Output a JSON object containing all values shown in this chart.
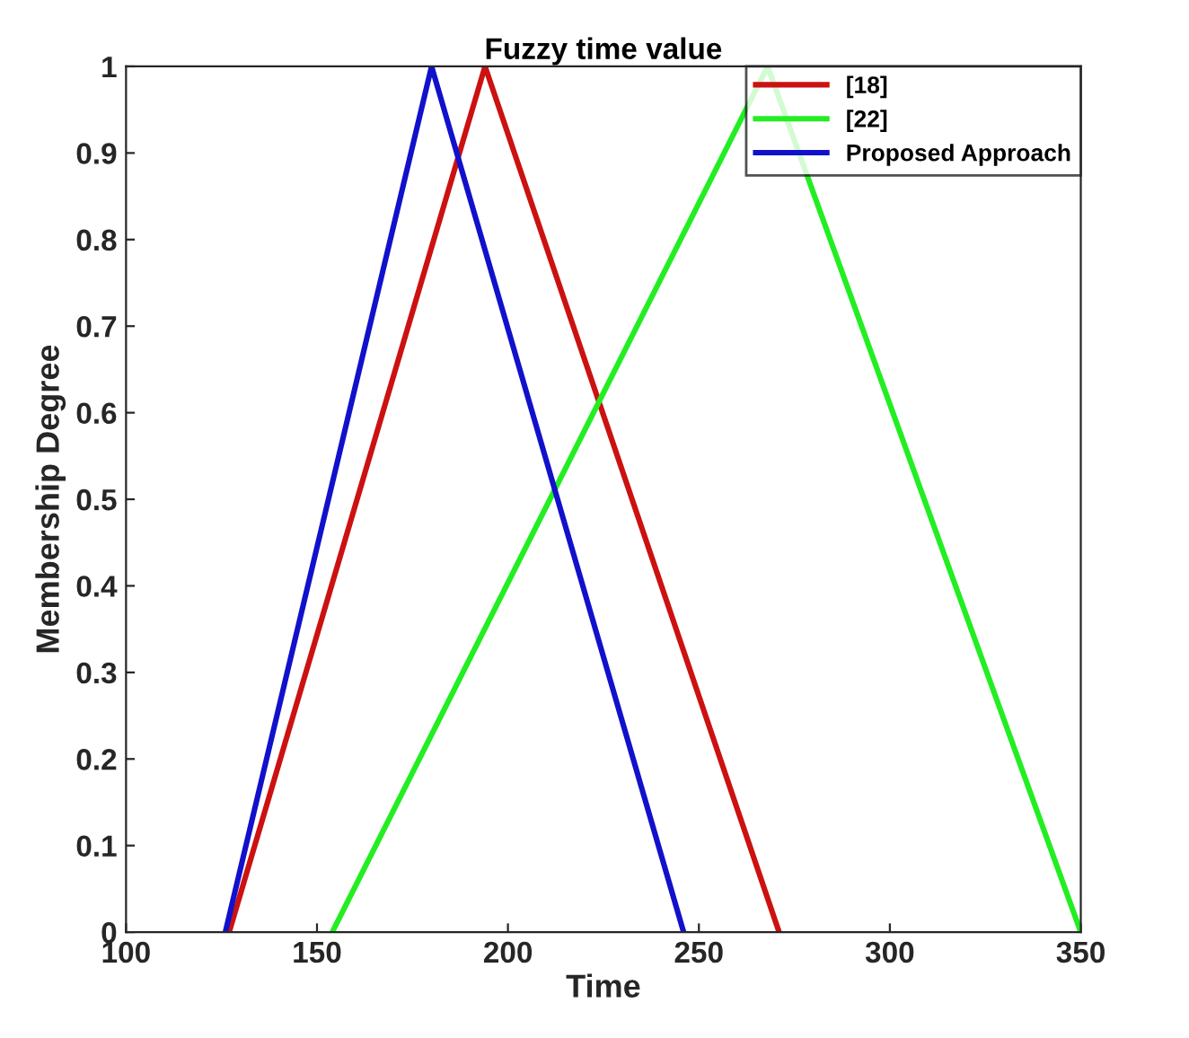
{
  "chart_data": {
    "type": "line",
    "title": "Fuzzy time value",
    "xlabel": "Time",
    "ylabel": "Membership Degree",
    "xlim": [
      100,
      350
    ],
    "xticks": [
      100,
      150,
      200,
      250,
      300,
      350
    ],
    "ylim": [
      0,
      1
    ],
    "yticks": [
      0,
      0.1,
      0.2,
      0.3,
      0.4,
      0.5,
      0.6,
      0.7,
      0.8,
      0.9,
      1
    ],
    "grid": false,
    "legend": "top right",
    "marker": "none",
    "line_style": "solid",
    "series": [
      {
        "name": "[18]",
        "color": "#cc1111",
        "x": [
          127,
          194,
          271
        ],
        "values": [
          0,
          1,
          0
        ]
      },
      {
        "name": "[22]",
        "color": "#22ee22",
        "x": [
          154,
          268,
          350
        ],
        "values": [
          0,
          1,
          0
        ]
      },
      {
        "name": "Proposed Approach",
        "color": "#1111cc",
        "x": [
          126,
          180,
          246
        ],
        "values": [
          0,
          1,
          0
        ]
      }
    ]
  }
}
